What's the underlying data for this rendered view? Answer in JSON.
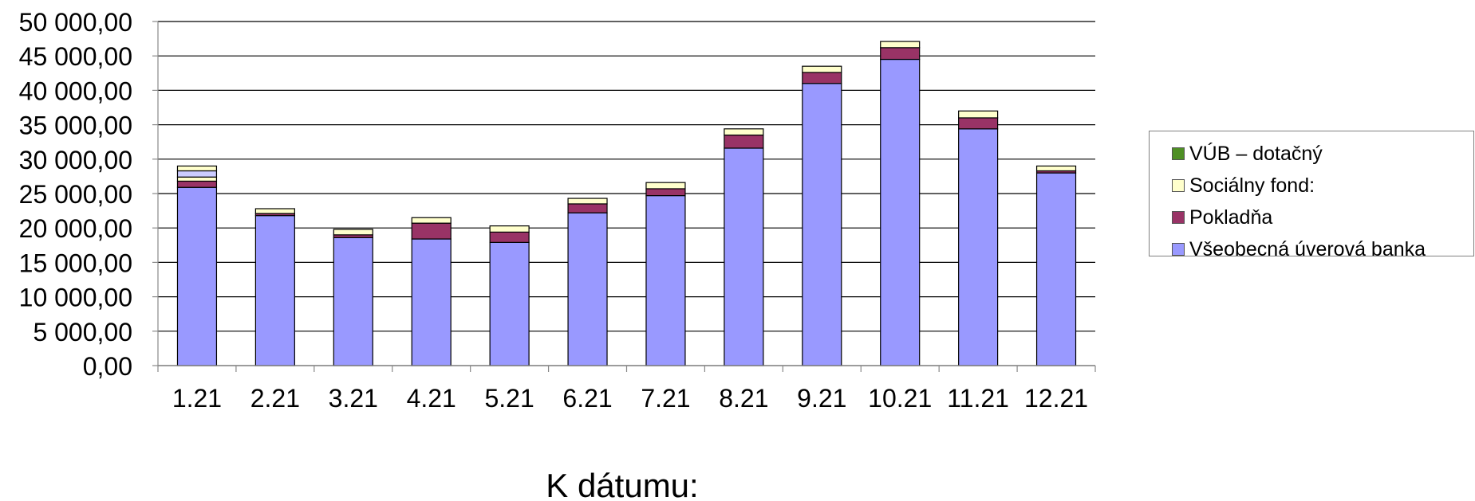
{
  "chart_data": {
    "type": "bar",
    "stacked": true,
    "title": "",
    "xlabel": "K dátumu:",
    "ylabel": "",
    "categories": [
      "1.21",
      "2.21",
      "3.21",
      "4.21",
      "5.21",
      "6.21",
      "7.21",
      "8.21",
      "9.21",
      "10.21",
      "11.21",
      "12.21"
    ],
    "ylim": [
      0,
      50000
    ],
    "yticks": [
      0,
      5000,
      10000,
      15000,
      20000,
      25000,
      30000,
      35000,
      40000,
      45000,
      50000
    ],
    "ytick_labels": [
      "0,00",
      "5 000,00",
      "10 000,00",
      "15 000,00",
      "20 000,00",
      "25 000,00",
      "30 000,00",
      "35 000,00",
      "40 000,00",
      "45 000,00",
      "50 000,00"
    ],
    "grid": true,
    "legend_position": "right",
    "series": [
      {
        "name": "Všeobecná úverová banka",
        "color": "#9999ff",
        "values": [
          25900,
          21800,
          18600,
          18400,
          17900,
          22200,
          24700,
          31600,
          41000,
          44500,
          34400,
          28000
        ]
      },
      {
        "name": "Pokladňa",
        "color": "#993366",
        "values": [
          900,
          300,
          400,
          2300,
          1500,
          1300,
          1000,
          1900,
          1600,
          1700,
          1600,
          300
        ]
      },
      {
        "name": "VÚB – dotačný",
        "color": "#4e8f24",
        "values": [
          0,
          0,
          0,
          0,
          0,
          0,
          0,
          0,
          0,
          0,
          0,
          0
        ]
      },
      {
        "name": "Sociálny fond:",
        "color": "#ffffcc",
        "values": [
          600,
          700,
          800,
          800,
          900,
          800,
          900,
          900,
          900,
          900,
          1000,
          700
        ]
      },
      {
        "name": "",
        "color": "#ccccff",
        "values": [
          900,
          0,
          0,
          0,
          0,
          0,
          0,
          0,
          0,
          0,
          0,
          0
        ]
      },
      {
        "name": "",
        "color": "#ffffcc",
        "values": [
          700,
          0,
          0,
          0,
          0,
          0,
          0,
          0,
          0,
          0,
          0,
          0
        ]
      }
    ],
    "legend_entries": [
      {
        "label": "VÚB – dotačný",
        "color": "#4e8f24"
      },
      {
        "label": "Sociálny fond:",
        "color": "#ffffcc"
      },
      {
        "label": "Pokladňa",
        "color": "#993366"
      },
      {
        "label": "Všeobecná úverová banka",
        "color": "#9999ff"
      }
    ]
  }
}
